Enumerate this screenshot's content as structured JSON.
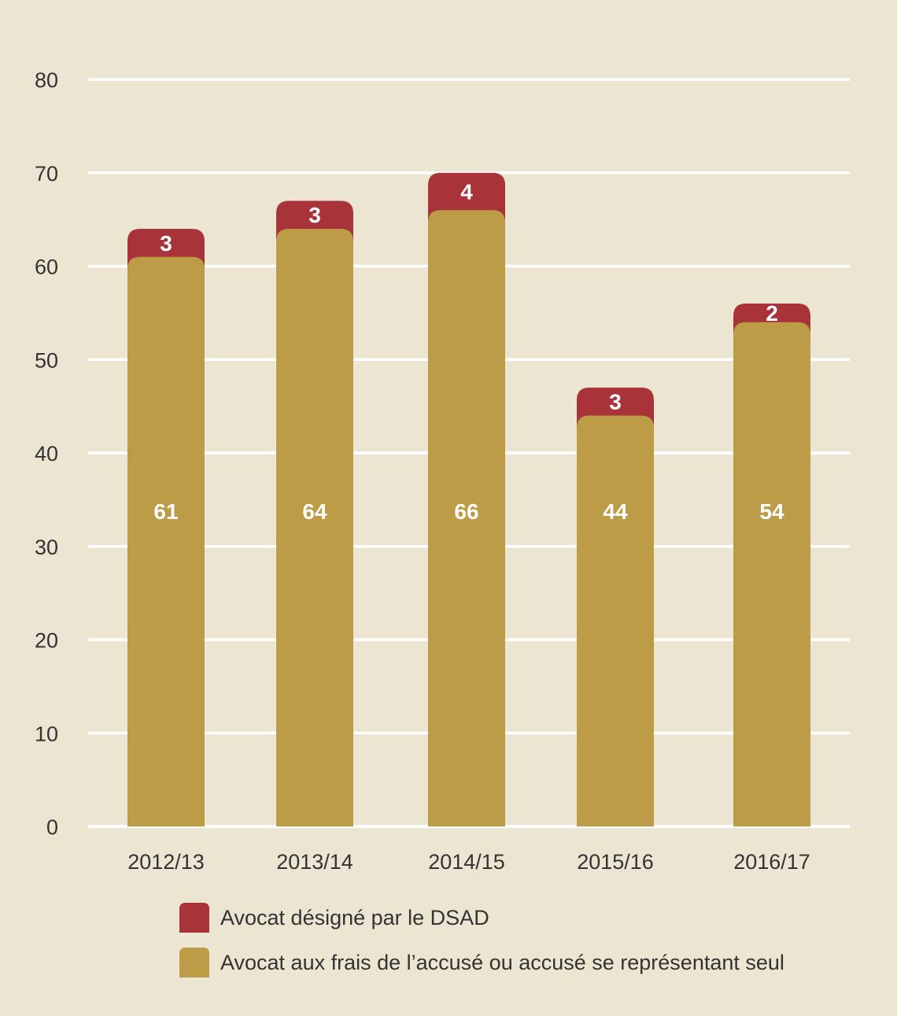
{
  "chart_data": {
    "type": "bar",
    "stacked": true,
    "categories": [
      "2012/13",
      "2013/14",
      "2014/15",
      "2015/16",
      "2016/17"
    ],
    "series": [
      {
        "name": "Avocat aux frais de l’accusé ou accusé se représentant seul",
        "values": [
          61,
          64,
          66,
          44,
          54
        ],
        "color": "#bd9c47"
      },
      {
        "name": "Avocat désigné par le DSAD",
        "values": [
          3,
          3,
          4,
          3,
          2
        ],
        "color": "#a8343a"
      }
    ],
    "ylim": [
      0,
      80
    ],
    "yticks": [
      0,
      10,
      20,
      30,
      40,
      50,
      60,
      70,
      80
    ],
    "grid": true,
    "legend_position": "bottom-left",
    "data_labels": true
  },
  "legend": {
    "items": [
      {
        "label": "Avocat désigné par le DSAD",
        "color": "#a8343a"
      },
      {
        "label": "Avocat aux frais de l’accusé ou accusé se représentant seul",
        "color": "#bd9c47"
      }
    ]
  }
}
